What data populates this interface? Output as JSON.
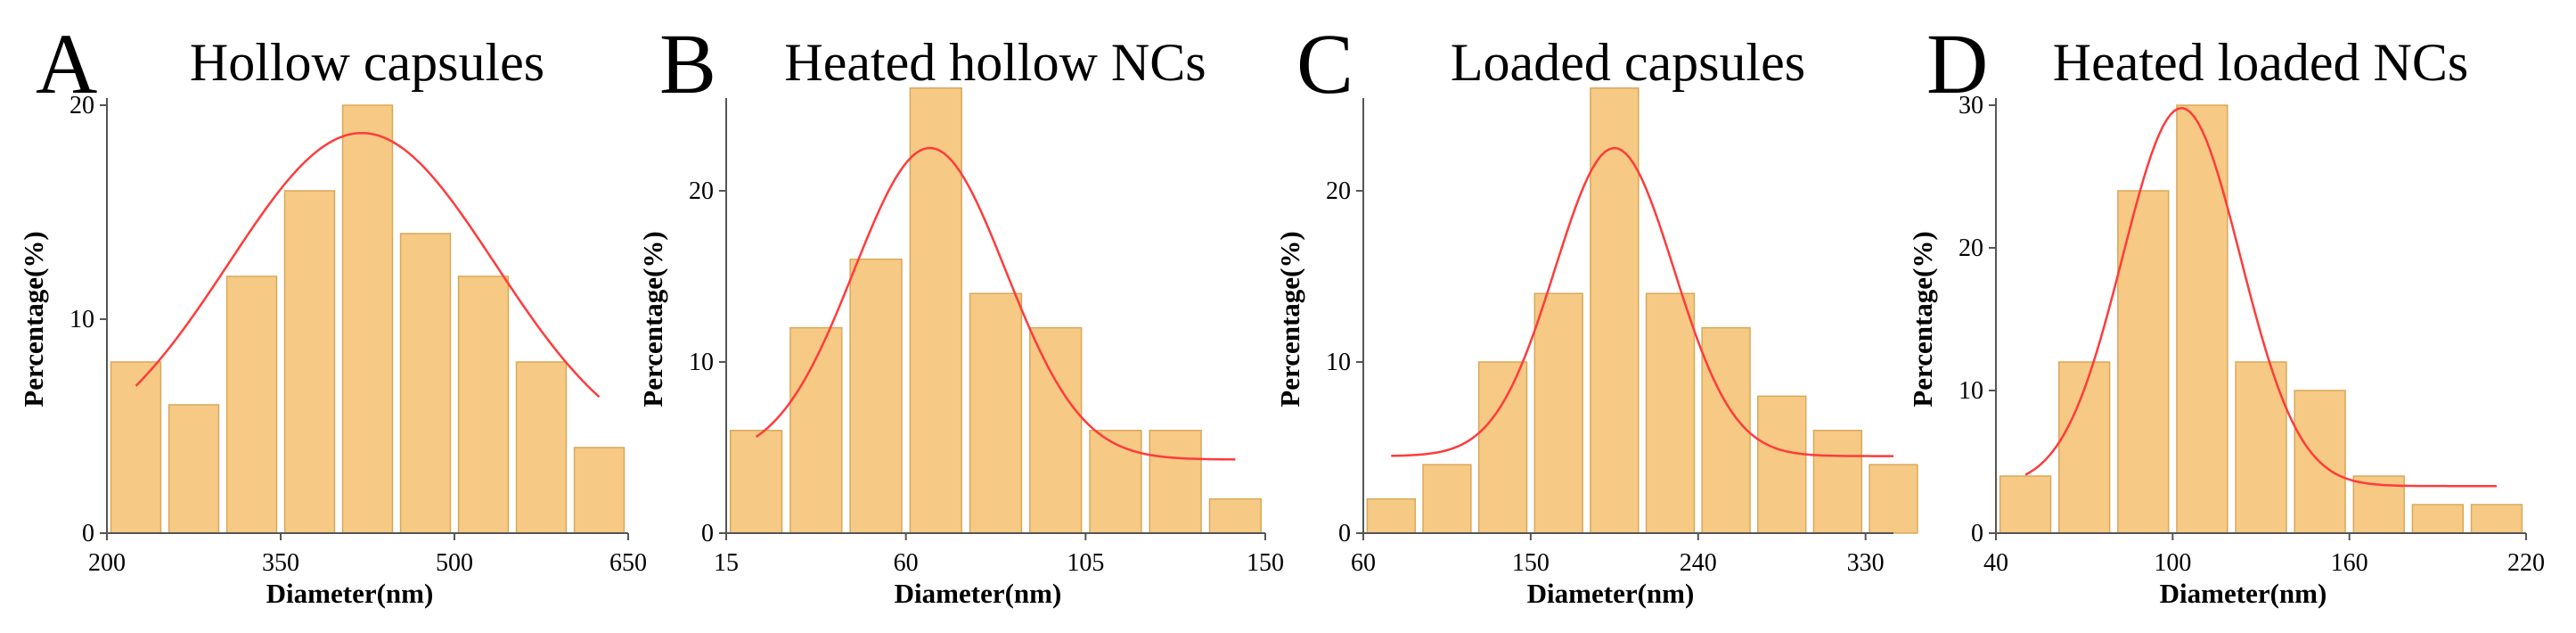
{
  "style": {
    "bar_fill": "#f6c985",
    "bar_edge": "#d8a85a",
    "fit_color": "#ff3b3b",
    "axis_color": "#555555"
  },
  "chart_data": [
    {
      "type": "bar",
      "letter": "A",
      "title": "Hollow capsules",
      "xlabel": "Diameter(nm)",
      "ylabel": "Percentage(%)",
      "xlim": [
        200,
        650
      ],
      "ylim": [
        0,
        20
      ],
      "xticks": [
        200,
        350,
        500,
        650
      ],
      "yticks": [
        0,
        10,
        20
      ],
      "bin_width": 50,
      "bins": [
        225,
        275,
        325,
        375,
        425,
        475,
        525,
        575,
        625
      ],
      "values": [
        8,
        6,
        12,
        16,
        20,
        14,
        12,
        8,
        4
      ],
      "fit": {
        "type": "gaussian",
        "x_start": 225,
        "x_end": 625,
        "baseline": 3.2,
        "amplitude": 15.5,
        "center": 420,
        "sigma": 115
      }
    },
    {
      "type": "bar",
      "letter": "B",
      "title": "Heated hollow NCs",
      "xlabel": "Diameter(nm)",
      "ylabel": "Percentage(%)",
      "xlim": [
        15,
        150
      ],
      "ylim": [
        0,
        25
      ],
      "xticks": [
        15,
        60,
        105,
        150
      ],
      "yticks": [
        0,
        10,
        20
      ],
      "bin_width": 15,
      "bins": [
        22.5,
        37.5,
        52.5,
        67.5,
        82.5,
        97.5,
        112.5,
        127.5,
        142.5
      ],
      "values": [
        6,
        12,
        16,
        26,
        14,
        12,
        6,
        6,
        2
      ],
      "fit": {
        "type": "gaussian",
        "x_start": 22.5,
        "x_end": 142.5,
        "baseline": 4.3,
        "amplitude": 18.2,
        "center": 66,
        "sigma": 19
      }
    },
    {
      "type": "bar",
      "letter": "C",
      "title": "Loaded capsules",
      "xlabel": "Diameter(nm)",
      "ylabel": "Percentage(%)",
      "xlim": [
        60,
        345
      ],
      "ylim": [
        0,
        25
      ],
      "xticks": [
        60,
        150,
        240,
        330
      ],
      "yticks": [
        0,
        10,
        20
      ],
      "bin_width": 30,
      "bins": [
        75,
        105,
        135,
        165,
        195,
        225,
        255,
        285,
        315,
        345
      ],
      "values": [
        2,
        4,
        10,
        14,
        26,
        14,
        12,
        8,
        6,
        4
      ],
      "fit": {
        "type": "gaussian",
        "x_start": 75,
        "x_end": 345,
        "baseline": 4.5,
        "amplitude": 18.0,
        "center": 195,
        "sigma": 32
      }
    },
    {
      "type": "bar",
      "letter": "D",
      "title": "Heated loaded NCs",
      "xlabel": "Diameter(nm)",
      "ylabel": "Percentage(%)",
      "xlim": [
        40,
        220
      ],
      "ylim": [
        0,
        30
      ],
      "xticks": [
        40,
        100,
        160,
        220
      ],
      "yticks": [
        0,
        10,
        20,
        30
      ],
      "bin_width": 20,
      "bins": [
        50,
        70,
        90,
        110,
        130,
        150,
        170,
        190,
        210
      ],
      "values": [
        4,
        12,
        24,
        30,
        12,
        10,
        4,
        2,
        2
      ],
      "fit": {
        "type": "gaussian",
        "x_start": 50,
        "x_end": 210,
        "baseline": 3.3,
        "amplitude": 26.5,
        "center": 103,
        "sigma": 20
      }
    }
  ]
}
